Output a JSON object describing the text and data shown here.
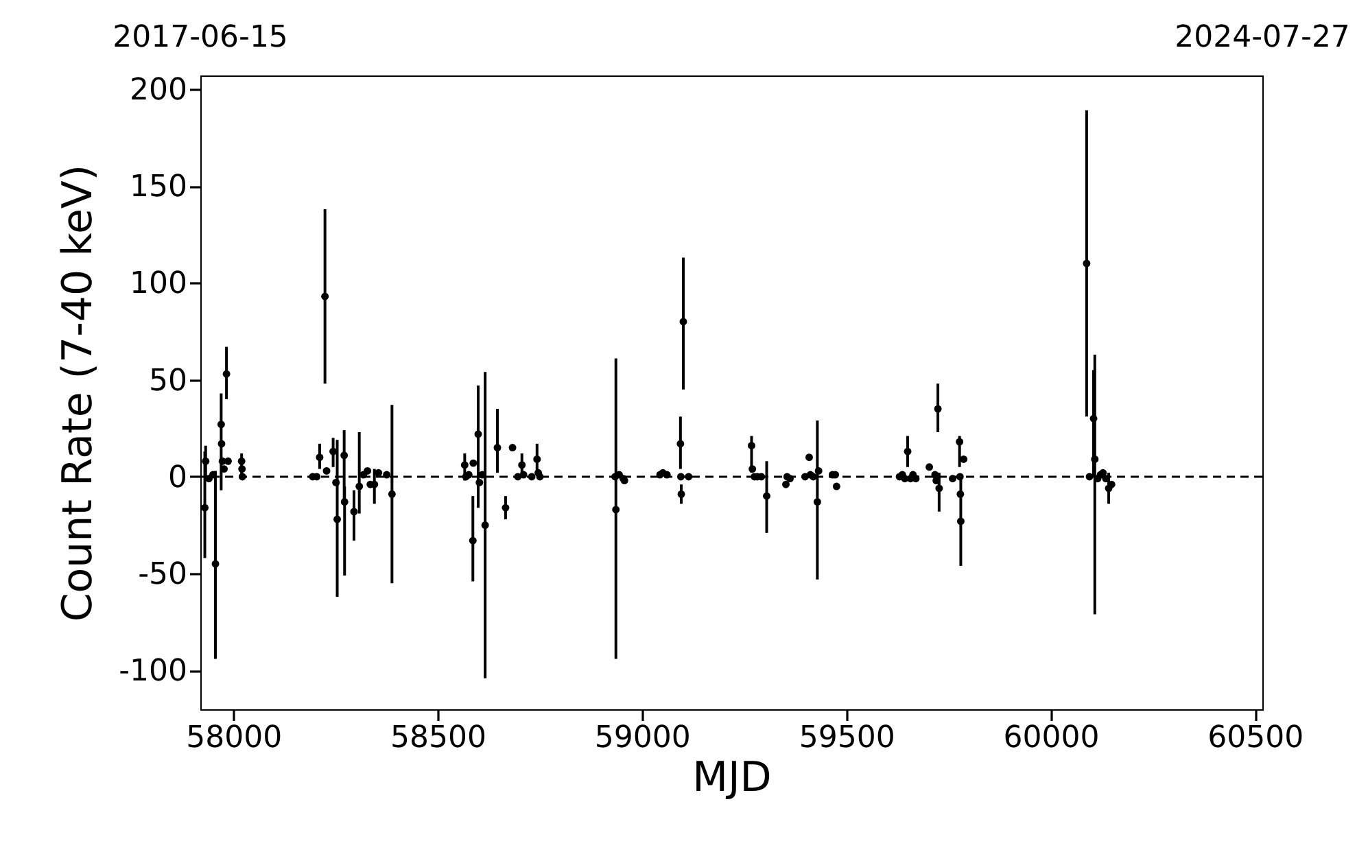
{
  "chart_data": {
    "type": "scatter",
    "xlabel": "MJD",
    "ylabel": "Count Rate (7-40 keV)",
    "marker": "circle",
    "grid": false,
    "xlim": [
      57919,
      60518
    ],
    "xticks": [
      58000,
      58500,
      59000,
      59500,
      60000,
      60500
    ],
    "annotations": [
      "2017-06-15",
      "2024-07-27"
    ],
    "ylim": [
      -120,
      207
    ],
    "yticks": [
      -100,
      -50,
      0,
      50,
      100,
      150,
      200
    ],
    "ref_lines": [
      {
        "axis": "y",
        "value": 0,
        "color": "#000000",
        "line_style": "dashed"
      }
    ],
    "x": [
      57930,
      57932,
      57940,
      57950,
      57956,
      57970,
      57971,
      57973,
      57977,
      57983,
      57987,
      58020,
      58021,
      58022,
      58194,
      58204,
      58211,
      58224,
      58228,
      58244,
      58251,
      58254,
      58271,
      58272,
      58295,
      58308,
      58318,
      58328,
      58335,
      58345,
      58355,
      58375,
      58388,
      58566,
      58569,
      58576,
      58586,
      58587,
      58599,
      58602,
      58609,
      58616,
      58646,
      58666,
      58683,
      58696,
      58706,
      58710,
      58730,
      58743,
      58746,
      58750,
      58934,
      58936,
      58944,
      58954,
      58957,
      59044,
      59051,
      59061,
      59094,
      59095,
      59096,
      59101,
      59114,
      59268,
      59270,
      59275,
      59282,
      59292,
      59305,
      59352,
      59355,
      59362,
      59399,
      59409,
      59412,
      59419,
      59429,
      59432,
      59466,
      59473,
      59476,
      59630,
      59637,
      59643,
      59650,
      59657,
      59663,
      59670,
      59703,
      59717,
      59720,
      59724,
      59727,
      59760,
      59777,
      59778,
      59779,
      59780,
      59787,
      60088,
      60095,
      60105,
      60108,
      60115,
      60122,
      60128,
      60135,
      60142,
      60149
    ],
    "series": [
      {
        "color": "#000000",
        "values": [
          -16,
          8,
          -1,
          1,
          -45,
          27,
          17,
          8,
          4,
          53,
          8,
          8,
          4,
          0,
          0,
          0,
          10,
          93,
          3,
          13,
          -3,
          -22,
          11,
          -13,
          -18,
          -5,
          1,
          3,
          -4,
          -4,
          2,
          1,
          -9,
          6,
          0,
          1,
          -33,
          7,
          22,
          -3,
          1,
          -25,
          15,
          -16,
          15,
          0,
          6,
          1,
          0,
          9,
          2,
          0,
          0,
          -17,
          1,
          -1,
          -2,
          1,
          2,
          1,
          17,
          0,
          -9,
          80,
          0,
          16,
          4,
          0,
          0,
          0,
          -10,
          -4,
          0,
          -1,
          0,
          10,
          1,
          0,
          -13,
          3,
          1,
          1,
          -5,
          0,
          1,
          -1,
          13,
          -1,
          1,
          -1,
          5,
          1,
          -2,
          35,
          -6,
          -1,
          18,
          0,
          -9,
          -23,
          9,
          110,
          0,
          30,
          9,
          -1,
          1,
          2,
          -1,
          -6,
          -4
        ],
        "errors": [
          [
            -42,
            13
          ],
          [
            0,
            16
          ],
          null,
          null,
          [
            -94,
            3
          ],
          [
            -7,
            43
          ],
          null,
          null,
          null,
          [
            40,
            67
          ],
          null,
          [
            0,
            12
          ],
          null,
          null,
          null,
          null,
          [
            4,
            17
          ],
          [
            48,
            138
          ],
          null,
          [
            5,
            20
          ],
          null,
          [
            -62,
            19
          ],
          [
            -13,
            24
          ],
          [
            -51,
            -5
          ],
          [
            -33,
            -7
          ],
          [
            -19,
            23
          ],
          null,
          null,
          null,
          [
            -14,
            4
          ],
          null,
          null,
          [
            -55,
            37
          ],
          [
            -2,
            12
          ],
          null,
          null,
          [
            -54,
            -10
          ],
          null,
          [
            -16,
            47
          ],
          null,
          null,
          [
            -104,
            54
          ],
          [
            2,
            35
          ],
          [
            -22,
            -10
          ],
          null,
          null,
          [
            1,
            12
          ],
          null,
          null,
          [
            2,
            17
          ],
          null,
          null,
          null,
          [
            -94,
            61
          ],
          null,
          null,
          null,
          null,
          null,
          null,
          [
            4,
            31
          ],
          null,
          [
            -14,
            -4
          ],
          [
            45,
            113
          ],
          null,
          [
            2,
            21
          ],
          null,
          null,
          null,
          null,
          [
            -29,
            8
          ],
          null,
          null,
          null,
          null,
          null,
          null,
          null,
          [
            -53,
            29
          ],
          null,
          null,
          null,
          null,
          null,
          null,
          null,
          [
            5,
            21
          ],
          null,
          null,
          null,
          null,
          null,
          null,
          [
            23,
            48
          ],
          [
            -18,
            2
          ],
          null,
          [
            5,
            21
          ],
          null,
          null,
          [
            -46,
            -1
          ],
          null,
          [
            31,
            189
          ],
          null,
          [
            0,
            55
          ],
          [
            -71,
            63
          ],
          null,
          null,
          null,
          null,
          [
            -14,
            2
          ],
          null
        ]
      }
    ]
  }
}
